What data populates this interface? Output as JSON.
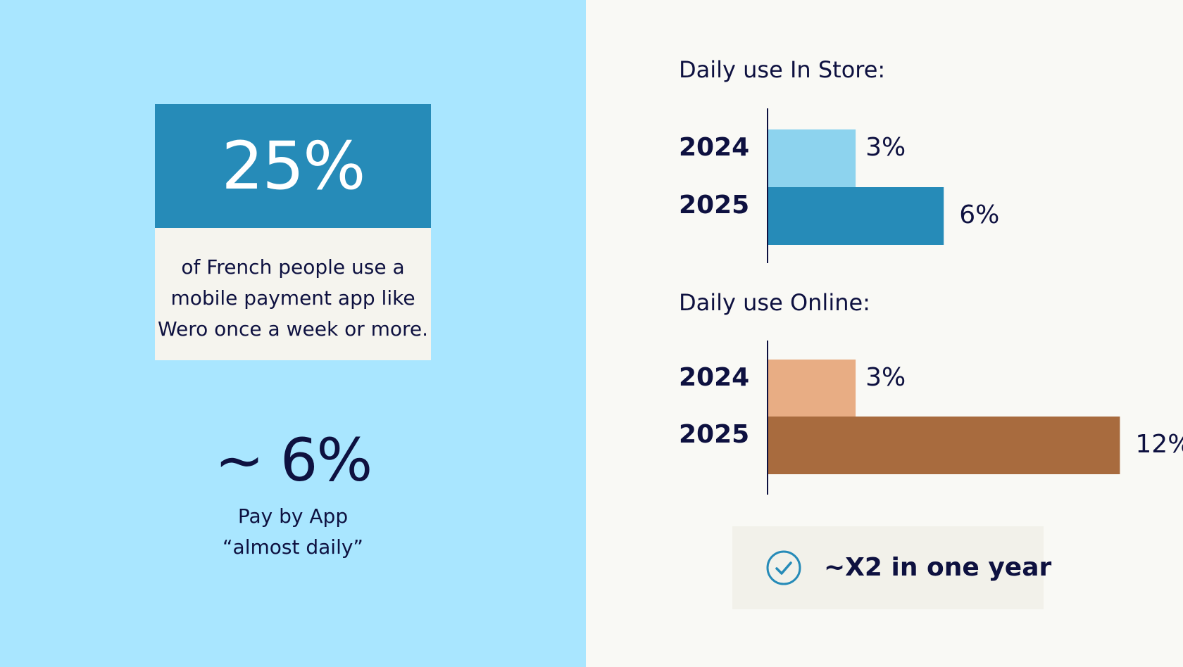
{
  "left": {
    "stat_value": "25%",
    "stat_text": "of French people use a mobile payment app like Wero once a week or more.",
    "secondary_value": "~ 6%",
    "secondary_caption": "Pay by App\n“almost daily”"
  },
  "callout": {
    "icon": "check-circle-icon",
    "text": "~X2 in one year"
  },
  "colors": {
    "left_bg": "#a9e6ff",
    "right_bg": "#f9f9f5",
    "brand_blue": "#268bb8",
    "text_dark": "#0e1140",
    "store_2024": "#8dd3ee",
    "store_2025": "#268bb8",
    "online_2024": "#e8ad84",
    "online_2025": "#a86b3e",
    "card_bg": "#f5f4ee",
    "callout_bg": "#f2f1ea"
  },
  "chart_data": [
    {
      "type": "bar",
      "orientation": "horizontal",
      "title": "Daily use In Store:",
      "categories": [
        "2024",
        "2025"
      ],
      "values": [
        3,
        6
      ],
      "value_labels": [
        "3%",
        "6%"
      ],
      "colors": [
        "#8dd3ee",
        "#268bb8"
      ],
      "xlim": [
        0,
        12
      ],
      "grid": false
    },
    {
      "type": "bar",
      "orientation": "horizontal",
      "title": "Daily use Online:",
      "categories": [
        "2024",
        "2025"
      ],
      "values": [
        3,
        12
      ],
      "value_labels": [
        "3%",
        "12%"
      ],
      "colors": [
        "#e8ad84",
        "#a86b3e"
      ],
      "xlim": [
        0,
        12
      ],
      "grid": false
    }
  ]
}
